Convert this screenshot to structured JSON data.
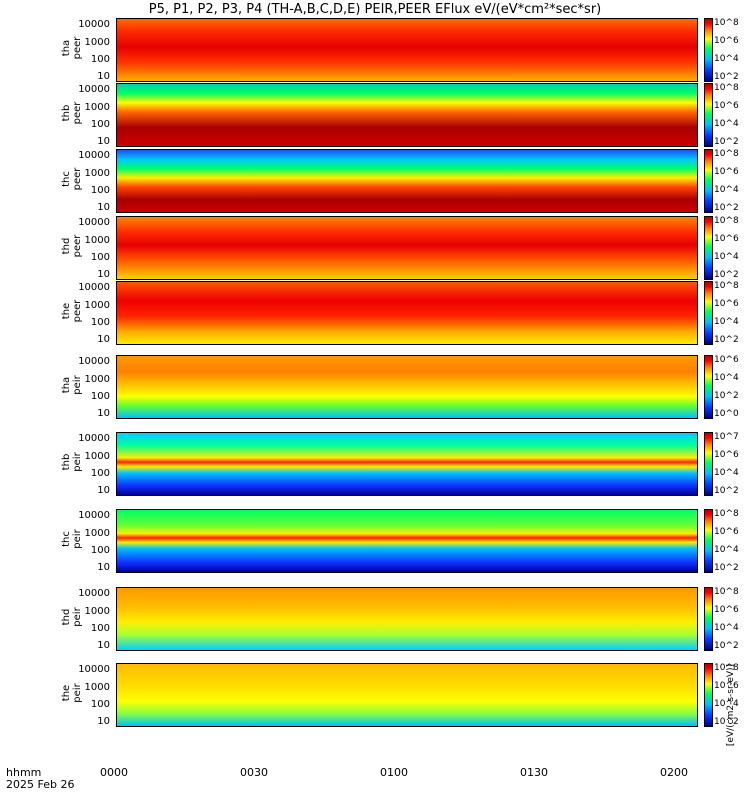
{
  "title": "P5, P1, P2, P3, P4 (TH-A,B,C,D,E) PEIR,PEER EFlux eV/(eV*cm²*sec*sr)",
  "x_ticks": [
    "0000",
    "0030",
    "0100",
    "0130",
    "0200"
  ],
  "footer": {
    "units": "hhmm",
    "date": "2025 Feb 26"
  },
  "colorbar_unit": "[eV/(cm2-s-sr-eV)]",
  "chart_data": [
    {
      "type": "heatmap",
      "panel": "tha peer",
      "ylabel": "tha\npeer",
      "y_ticks": [
        "10000",
        "1000",
        "100",
        "10"
      ],
      "yscale": "log",
      "colorscale": [
        "10^2",
        "10^4",
        "10^6",
        "10^8"
      ]
    },
    {
      "type": "heatmap",
      "panel": "thb peer",
      "ylabel": "thb\npeer",
      "y_ticks": [
        "10000",
        "1000",
        "100",
        "10"
      ],
      "yscale": "log",
      "colorscale": [
        "10^2",
        "10^4",
        "10^6",
        "10^8"
      ]
    },
    {
      "type": "heatmap",
      "panel": "thc peer",
      "ylabel": "thc\npeer",
      "y_ticks": [
        "10000",
        "1000",
        "100",
        "10"
      ],
      "yscale": "log",
      "colorscale": [
        "10^2",
        "10^4",
        "10^6",
        "10^8"
      ]
    },
    {
      "type": "heatmap",
      "panel": "thd peer",
      "ylabel": "thd\npeer",
      "y_ticks": [
        "10000",
        "1000",
        "100",
        "10"
      ],
      "yscale": "log",
      "colorscale": [
        "10^2",
        "10^4",
        "10^6",
        "10^8"
      ]
    },
    {
      "type": "heatmap",
      "panel": "the peer",
      "ylabel": "the\npeer",
      "y_ticks": [
        "10000",
        "1000",
        "100",
        "10"
      ],
      "yscale": "log",
      "colorscale": [
        "10^2",
        "10^4",
        "10^6",
        "10^8"
      ]
    },
    {
      "type": "heatmap",
      "panel": "tha peir",
      "ylabel": "tha\npeir",
      "y_ticks": [
        "10000",
        "1000",
        "100",
        "10"
      ],
      "yscale": "log",
      "colorscale": [
        "10^0",
        "10^2",
        "10^4",
        "10^6"
      ]
    },
    {
      "type": "heatmap",
      "panel": "thb peir",
      "ylabel": "thb\npeir",
      "y_ticks": [
        "10000",
        "1000",
        "100",
        "10"
      ],
      "yscale": "log",
      "colorscale": [
        "10^2",
        "10^4",
        "10^6",
        "10^7"
      ]
    },
    {
      "type": "heatmap",
      "panel": "thc peir",
      "ylabel": "thc\npeir",
      "y_ticks": [
        "10000",
        "1000",
        "100",
        "10"
      ],
      "yscale": "log",
      "colorscale": [
        "10^2",
        "10^4",
        "10^6",
        "10^8"
      ]
    },
    {
      "type": "heatmap",
      "panel": "thd peir",
      "ylabel": "thd\npeir",
      "y_ticks": [
        "10000",
        "1000",
        "100",
        "10"
      ],
      "yscale": "log",
      "colorscale": [
        "10^2",
        "10^4",
        "10^6",
        "10^8"
      ]
    },
    {
      "type": "heatmap",
      "panel": "the peir",
      "ylabel": "the\npeir",
      "y_ticks": [
        "10000",
        "1000",
        "100",
        "10"
      ],
      "yscale": "log",
      "colorscale": [
        "10^2",
        "10^4",
        "10^6",
        "10^8"
      ]
    }
  ]
}
